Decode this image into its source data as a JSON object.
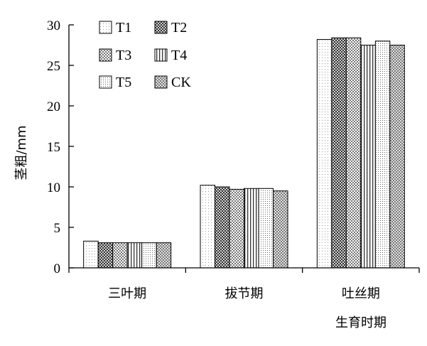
{
  "chart_data": {
    "type": "bar",
    "title": "",
    "xlabel": "生育时期",
    "ylabel": "茎粗/mm",
    "ylim": [
      0,
      30
    ],
    "yticks": [
      "0",
      "5",
      "10",
      "15",
      "20",
      "25",
      "30"
    ],
    "categories": [
      "三叶期",
      "拔节期",
      "吐丝期"
    ],
    "series": [
      {
        "name": "T1",
        "values": [
          3.3,
          10.2,
          28.2
        ],
        "pattern": "dots-light"
      },
      {
        "name": "T2",
        "values": [
          3.1,
          10.0,
          28.4
        ],
        "pattern": "dark-checker"
      },
      {
        "name": "T3",
        "values": [
          3.1,
          9.7,
          28.4
        ],
        "pattern": "checker"
      },
      {
        "name": "T4",
        "values": [
          3.1,
          9.8,
          27.5
        ],
        "pattern": "vertical-lines"
      },
      {
        "name": "T5",
        "values": [
          3.1,
          9.8,
          28.0
        ],
        "pattern": "dots-dense"
      },
      {
        "name": "CK",
        "values": [
          3.1,
          9.5,
          27.5
        ],
        "pattern": "crosshatch"
      }
    ],
    "legend": "top-left, 3 rows x 2 columns",
    "grid": false
  }
}
